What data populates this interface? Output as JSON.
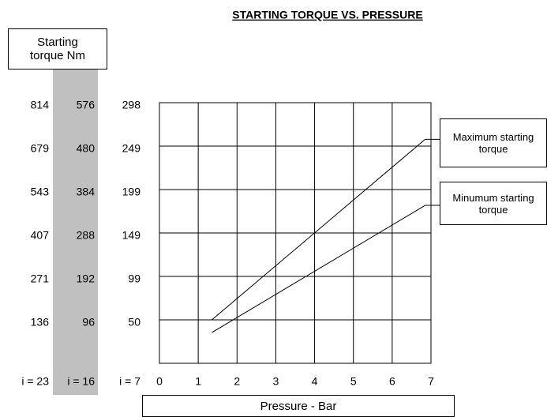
{
  "chart_data": {
    "type": "line",
    "title": "STARTING TORQUE VS. PRESSURE",
    "ylabel": "Starting torque Nm",
    "xlabel": "Pressure - Bar",
    "xlim": [
      0,
      7
    ],
    "xticks": [
      0,
      1,
      2,
      3,
      4,
      5,
      6,
      7
    ],
    "ylim": [
      0,
      576
    ],
    "yticks": [
      96,
      192,
      288,
      384,
      480,
      576
    ],
    "ytick_columns": [
      {
        "label": "i = 23",
        "values": [
          136,
          271,
          407,
          543,
          679,
          814
        ]
      },
      {
        "label": "i = 16"
      },
      {
        "label": "i = 7",
        "values": [
          50,
          99,
          149,
          199,
          249,
          298
        ]
      }
    ],
    "grid": true,
    "series": [
      {
        "name": "Maximum starting torque",
        "color": "#000000",
        "x": [
          1.35,
          6.85
        ],
        "values": [
          96,
          495
        ]
      },
      {
        "name": "Minumum starting torque",
        "color": "#000000",
        "x": [
          1.35,
          6.85
        ],
        "values": [
          68,
          349
        ]
      }
    ]
  }
}
